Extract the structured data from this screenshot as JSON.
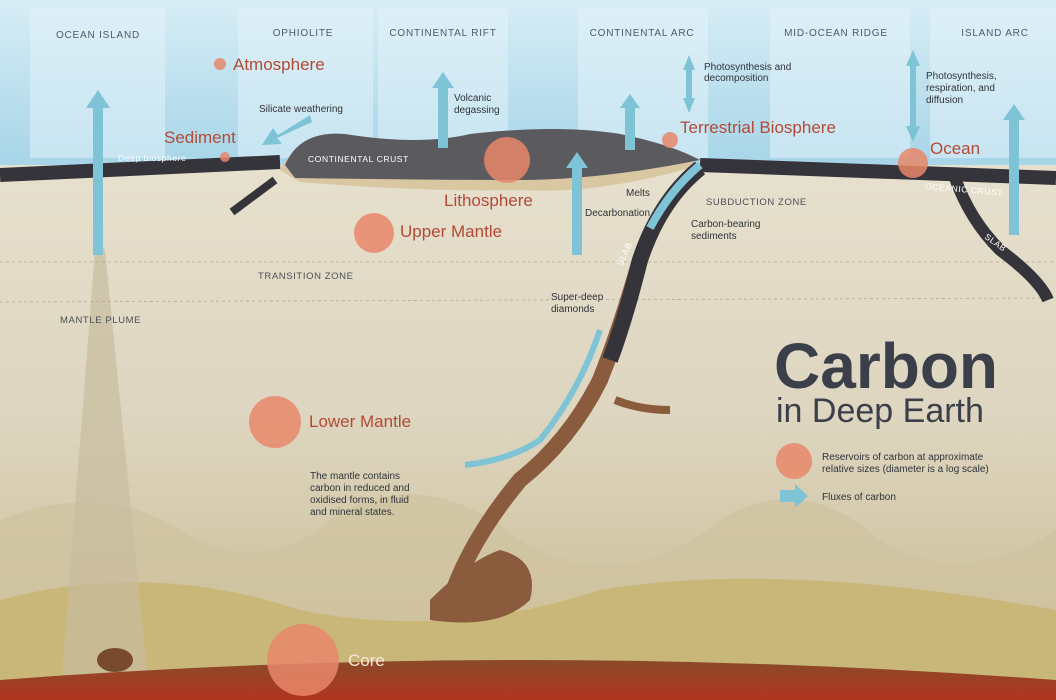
{
  "settings": [
    "OCEAN ISLAND",
    "OPHIOLITE",
    "CONTINENTAL RIFT",
    "CONTINENTAL ARC",
    "MID-OCEAN RIDGE",
    "ISLAND ARC"
  ],
  "reservoirs": [
    "Atmosphere",
    "Sediment",
    "Terrestrial Biosphere",
    "Ocean",
    "Lithosphere",
    "Upper Mantle",
    "Lower Mantle",
    "Core"
  ],
  "labels": {
    "silicate_weathering": "Silicate weathering",
    "deep_biosphere": "Deep biosphere",
    "continental_crust": "CONTINENTAL CRUST",
    "volcanic_degassing": [
      "Volcanic",
      "degassing"
    ],
    "photosynthesis_decomposition": [
      "Photosynthesis and",
      "decomposition"
    ],
    "photosynthesis_respiration": [
      "Photosynthesis,",
      "respiration, and",
      "diffusion"
    ],
    "melts": "Melts",
    "decarbonation": "Decarbonation",
    "carbon_bearing_sediments": [
      "Carbon-bearing",
      "sediments"
    ],
    "subduction_zone": "SUBDUCTION ZONE",
    "oceanic_crust": "OCEANIC CRUST",
    "slab_1": "SLAB",
    "slab_2": "SLAB",
    "transition_zone": "TRANSITION ZONE",
    "mantle_plume": "MANTLE PLUME",
    "super_deep_diamonds": [
      "Super-deep",
      "diamonds"
    ],
    "mantle_note": [
      "The mantle contains",
      "carbon in reduced and",
      "oxidised forms, in fluid",
      "and mineral states."
    ]
  },
  "title": {
    "main": "Carbon",
    "sub": "in Deep Earth"
  },
  "legend": {
    "reservoirs": [
      "Reservoirs of carbon at approximate",
      "relative sizes (diameter is a log scale)"
    ],
    "fluxes": "Fluxes of carbon"
  }
}
